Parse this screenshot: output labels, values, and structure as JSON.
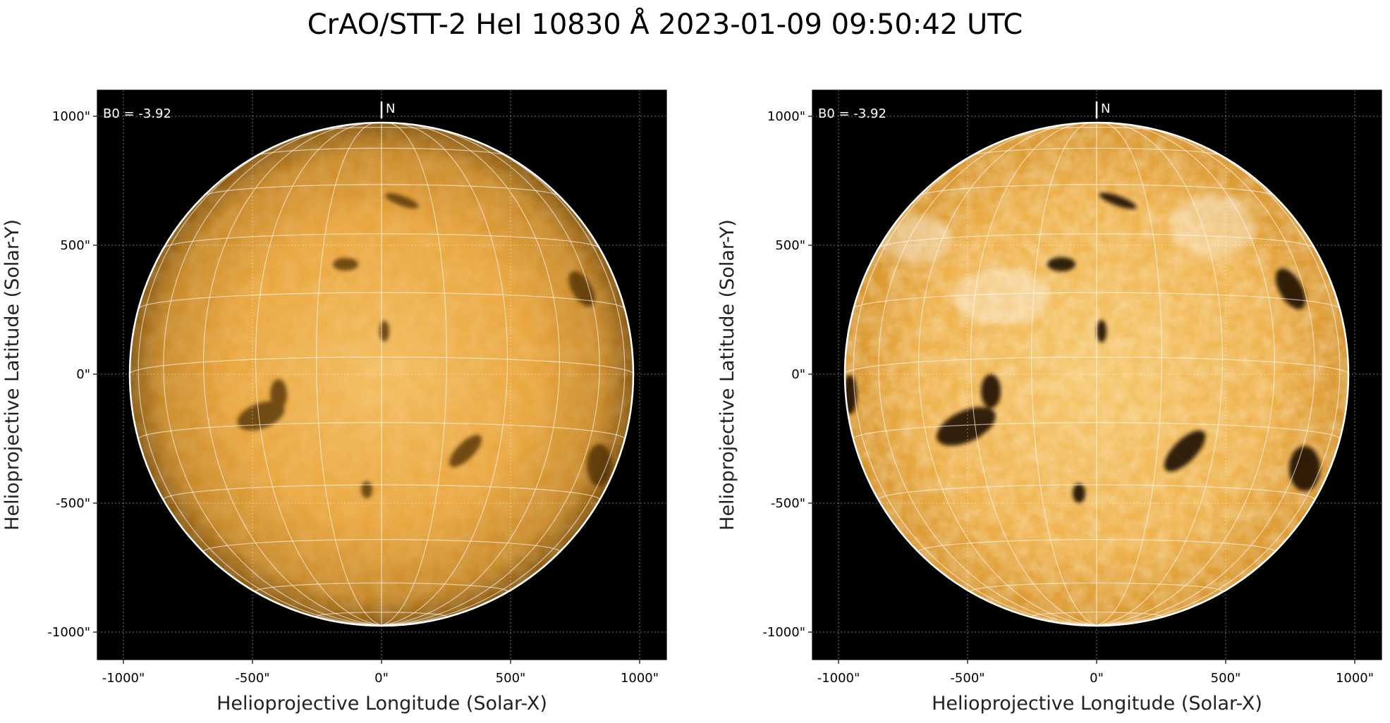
{
  "title": "CrAO/STT-2 HeI 10830 Å 2023-01-09 09:50:42 UTC",
  "colors": {
    "background": "#000000",
    "disk_light": "#f0b04a",
    "disk_dark": "#6b3d08",
    "grid": "#ffffff"
  },
  "panels": [
    {
      "variant": "original",
      "b0_text": "B0 = -3.92",
      "north_text": "N",
      "xlabel": "Helioprojective Longitude (Solar-X)",
      "ylabel": "Helioprojective Latitude (Solar-Y)",
      "xticks": [
        "-1000\"",
        "-500\"",
        "0\"",
        "500\"",
        "1000\""
      ],
      "yticks": [
        "1000\"",
        "500\"",
        "0\"",
        "-500\"",
        "-1000\""
      ]
    },
    {
      "variant": "enhanced",
      "b0_text": "B0 = -3.92",
      "north_text": "N",
      "xlabel": "Helioprojective Longitude (Solar-X)",
      "ylabel": "Helioprojective Latitude (Solar-Y)",
      "xticks": [
        "-1000\"",
        "-500\"",
        "0\"",
        "500\"",
        "1000\""
      ],
      "yticks": [
        "1000\"",
        "500\"",
        "0\"",
        "-500\"",
        "-1000\""
      ]
    }
  ]
}
